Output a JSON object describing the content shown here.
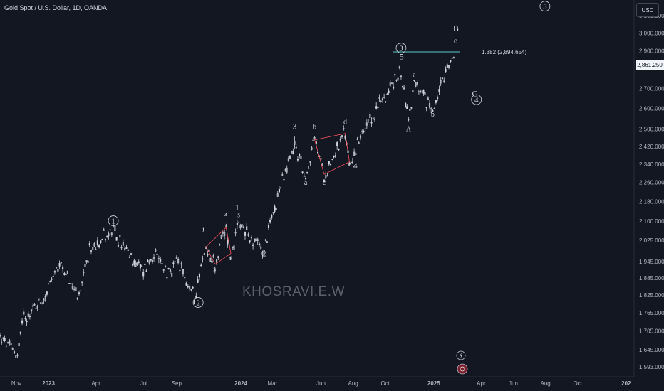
{
  "header": {
    "symbol_title": "Gold Spot / U.S. Dollar, 1D, OANDA",
    "currency": "USD"
  },
  "current_price": {
    "value": 2861.25,
    "label": "2,861.250"
  },
  "watermark": "KHOSRAVI.E.W",
  "fib_annotation": "1.382 (2,894.654)",
  "colors": {
    "background": "#131722",
    "candles": "#d1d4dc",
    "channel": "#f7525f",
    "fib_line": "#5ec9c9",
    "grid": "#1e222d"
  },
  "icons": {
    "lightning": "lightning-icon",
    "event": "dividends-event-icon"
  },
  "chart_data": {
    "type": "candlestick",
    "title": "Gold Spot / U.S. Dollar, 1D, OANDA",
    "y_scale": "log",
    "ylim": [
      1580,
      3160
    ],
    "price_ticks": [
      {
        "value": 3100,
        "label": "3,100.000"
      },
      {
        "value": 3000,
        "label": "3,000.000"
      },
      {
        "value": 2900,
        "label": "2,900.000"
      },
      {
        "value": 2700,
        "label": "2,700.000"
      },
      {
        "value": 2600,
        "label": "2,600.000"
      },
      {
        "value": 2500,
        "label": "2,500.000"
      },
      {
        "value": 2420,
        "label": "2,420.000"
      },
      {
        "value": 2340,
        "label": "2,340.000"
      },
      {
        "value": 2260,
        "label": "2,260.000"
      },
      {
        "value": 2180,
        "label": "2,180.000"
      },
      {
        "value": 2100,
        "label": "2,100.000"
      },
      {
        "value": 2025,
        "label": "2,025.000"
      },
      {
        "value": 1945,
        "label": "1,945.000"
      },
      {
        "value": 1885,
        "label": "1,885.000"
      },
      {
        "value": 1825,
        "label": "1,825.000"
      },
      {
        "value": 1765,
        "label": "1,765.000"
      },
      {
        "value": 1705,
        "label": "1,705.000"
      },
      {
        "value": 1645,
        "label": "1,645.000"
      },
      {
        "value": 1593,
        "label": "1,593.000"
      }
    ],
    "date_ticks": [
      {
        "date": "2022-11-01",
        "label": "Nov"
      },
      {
        "date": "2023-01-01",
        "label": "2023"
      },
      {
        "date": "2023-04-01",
        "label": "Apr"
      },
      {
        "date": "2023-07-01",
        "label": "Jul"
      },
      {
        "date": "2023-09-01",
        "label": "Sep"
      },
      {
        "date": "2024-01-01",
        "label": "2024"
      },
      {
        "date": "2024-03-01",
        "label": "Mar"
      },
      {
        "date": "2024-06-01",
        "label": "Jun"
      },
      {
        "date": "2024-08-01",
        "label": "Aug"
      },
      {
        "date": "2024-10-01",
        "label": "Oct"
      },
      {
        "date": "2025-01-01",
        "label": "2025"
      },
      {
        "date": "2025-04-01",
        "label": "Apr"
      },
      {
        "date": "2025-06-01",
        "label": "Jun"
      },
      {
        "date": "2025-08-01",
        "label": "Aug"
      },
      {
        "date": "2025-10-01",
        "label": "Oct"
      },
      {
        "date": "2026-01-01",
        "label": "202"
      }
    ],
    "price_path": [
      {
        "date": "2022-10-01",
        "price": 1680
      },
      {
        "date": "2022-11-03",
        "price": 1630
      },
      {
        "date": "2022-11-15",
        "price": 1750
      },
      {
        "date": "2022-12-20",
        "price": 1810
      },
      {
        "date": "2023-01-25",
        "price": 1935
      },
      {
        "date": "2023-02-28",
        "price": 1810
      },
      {
        "date": "2023-03-20",
        "price": 1985
      },
      {
        "date": "2023-04-13",
        "price": 2040
      },
      {
        "date": "2023-05-04",
        "price": 2060
      },
      {
        "date": "2023-06-01",
        "price": 1970
      },
      {
        "date": "2023-06-30",
        "price": 1910
      },
      {
        "date": "2023-07-20",
        "price": 1975
      },
      {
        "date": "2023-08-20",
        "price": 1890
      },
      {
        "date": "2023-09-01",
        "price": 1945
      },
      {
        "date": "2023-10-05",
        "price": 1820
      },
      {
        "date": "2023-10-27",
        "price": 2000
      },
      {
        "date": "2023-11-13",
        "price": 1935
      },
      {
        "date": "2023-12-04",
        "price": 2075
      },
      {
        "date": "2023-12-13",
        "price": 1975
      },
      {
        "date": "2023-12-28",
        "price": 2080
      },
      {
        "date": "2024-02-14",
        "price": 1985
      },
      {
        "date": "2024-03-08",
        "price": 2180
      },
      {
        "date": "2024-04-12",
        "price": 2430
      },
      {
        "date": "2024-05-03",
        "price": 2285
      },
      {
        "date": "2024-05-20",
        "price": 2450
      },
      {
        "date": "2024-06-07",
        "price": 2295
      },
      {
        "date": "2024-07-17",
        "price": 2480
      },
      {
        "date": "2024-07-25",
        "price": 2350
      },
      {
        "date": "2024-09-20",
        "price": 2620
      },
      {
        "date": "2024-10-31",
        "price": 2790
      },
      {
        "date": "2024-11-14",
        "price": 2540
      },
      {
        "date": "2024-11-25",
        "price": 2720
      },
      {
        "date": "2024-12-30",
        "price": 2600
      },
      {
        "date": "2025-02-11",
        "price": 2890
      }
    ],
    "fib_level": {
      "label": "1.382 (2,894.654)",
      "price": 2894.654,
      "from": "2024-10-15",
      "to": "2025-02-20"
    },
    "channels": [
      {
        "points": [
          {
            "date": "2023-10-27",
            "price": 2000
          },
          {
            "date": "2023-12-04",
            "price": 2075
          },
          {
            "date": "2023-12-13",
            "price": 1975
          },
          {
            "date": "2023-11-13",
            "price": 1935
          }
        ]
      },
      {
        "points": [
          {
            "date": "2024-05-20",
            "price": 2450
          },
          {
            "date": "2024-07-17",
            "price": 2480
          },
          {
            "date": "2024-07-25",
            "price": 2350
          },
          {
            "date": "2024-06-07",
            "price": 2295
          }
        ]
      }
    ],
    "wave_labels": [
      {
        "text": "1",
        "date": "2023-05-04",
        "price": 2090,
        "circled": true,
        "size": "lg"
      },
      {
        "text": "2",
        "date": "2023-10-12",
        "price": 1790,
        "circled": true,
        "size": "lg"
      },
      {
        "text": "1",
        "date": "2023-10-22",
        "price": 2060,
        "circled": false,
        "size": "xs"
      },
      {
        "text": "2",
        "date": "2023-11-12",
        "price": 1910,
        "circled": false,
        "size": "xs"
      },
      {
        "text": "3",
        "date": "2023-12-03",
        "price": 2120,
        "circled": false,
        "size": "xs"
      },
      {
        "text": "4",
        "date": "2023-12-11",
        "price": 1950,
        "circled": false,
        "size": "xs"
      },
      {
        "text": "5",
        "date": "2023-12-28",
        "price": 2115,
        "circled": false,
        "size": "xs"
      },
      {
        "text": "1",
        "date": "2023-12-25",
        "price": 2145,
        "circled": false,
        "size": "md"
      },
      {
        "text": "2",
        "date": "2024-02-14",
        "price": 1965,
        "circled": false,
        "size": "md"
      },
      {
        "text": "3",
        "date": "2024-04-12",
        "price": 2500,
        "circled": false,
        "size": "md"
      },
      {
        "text": "a",
        "date": "2024-05-03",
        "price": 2250,
        "circled": false,
        "size": "sm"
      },
      {
        "text": "b",
        "date": "2024-05-20",
        "price": 2500,
        "circled": false,
        "size": "sm"
      },
      {
        "text": "c",
        "date": "2024-06-07",
        "price": 2250,
        "circled": false,
        "size": "sm"
      },
      {
        "text": "d",
        "date": "2024-07-17",
        "price": 2525,
        "circled": false,
        "size": "sm"
      },
      {
        "text": "e",
        "date": "2024-07-25",
        "price": 2330,
        "circled": false,
        "size": "sm"
      },
      {
        "text": "4",
        "date": "2024-08-05",
        "price": 2320,
        "circled": false,
        "size": "md"
      },
      {
        "text": "3",
        "date": "2024-10-31",
        "price": 2900,
        "circled": true,
        "size": "lg"
      },
      {
        "text": "5",
        "date": "2024-11-01",
        "price": 2855,
        "circled": false,
        "size": "md"
      },
      {
        "text": "A",
        "date": "2024-11-14",
        "price": 2490,
        "circled": false,
        "size": "sm"
      },
      {
        "text": "a",
        "date": "2024-11-25",
        "price": 2760,
        "circled": false,
        "size": "sm"
      },
      {
        "text": "b",
        "date": "2024-12-30",
        "price": 2560,
        "circled": false,
        "size": "sm"
      },
      {
        "text": "c",
        "date": "2025-02-11",
        "price": 2945,
        "circled": false,
        "size": "sm"
      },
      {
        "text": "B",
        "date": "2025-02-12",
        "price": 3010,
        "circled": false,
        "size": "md"
      },
      {
        "text": "C",
        "date": "2025-03-20",
        "price": 2660,
        "circled": false,
        "size": "md"
      },
      {
        "text": "4",
        "date": "2025-03-23",
        "price": 2630,
        "circled": true,
        "size": "lg"
      },
      {
        "text": "5",
        "date": "2025-07-31",
        "price": 3140,
        "circled": true,
        "size": "lg"
      }
    ]
  }
}
